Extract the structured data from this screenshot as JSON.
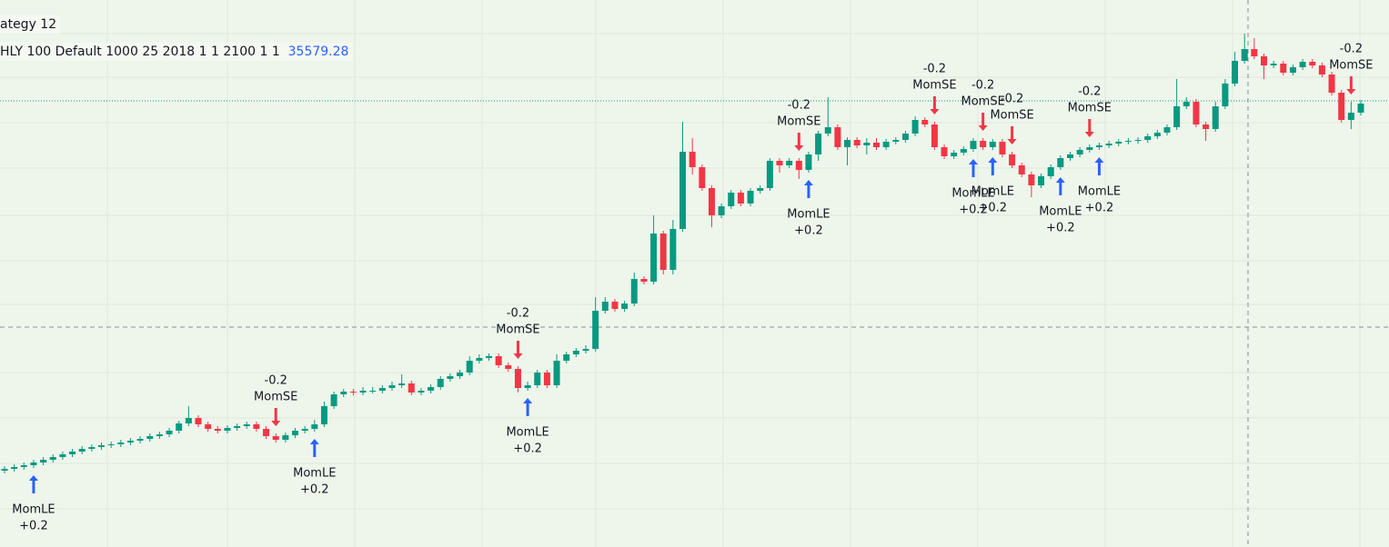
{
  "chart_data": {
    "type": "candlestick",
    "title": "ategy 12",
    "subtitle": "HLY 100 Default 1000 25 2018 1 1 2100 1 1",
    "last_value": 35579.28,
    "up_color": "#089981",
    "down_color": "#f23645",
    "long_color": "#2962ff",
    "short_color": "#f23645",
    "ylim": [
      0,
      602
    ],
    "open": [
      84,
      86,
      88,
      90,
      93,
      96,
      99,
      102,
      105,
      108,
      110,
      112,
      113,
      115,
      117,
      119,
      122,
      124,
      128,
      136,
      142,
      135,
      130,
      128,
      131,
      133,
      135,
      130,
      122,
      118,
      123,
      128,
      130,
      135,
      155,
      168,
      171,
      170,
      172,
      172,
      175,
      178,
      180,
      170,
      172,
      176,
      185,
      188,
      192,
      205,
      208,
      210,
      200,
      196,
      175,
      178,
      192,
      178,
      205,
      212,
      216,
      218,
      260,
      270,
      262,
      268,
      295,
      292,
      345,
      305,
      350,
      435,
      418,
      395,
      365,
      375,
      390,
      378,
      392,
      395,
      425,
      420,
      425,
      415,
      432,
      455,
      462,
      440,
      448,
      442,
      445,
      440,
      446,
      448,
      455,
      470,
      465,
      440,
      430,
      434,
      438,
      447,
      440,
      446,
      432,
      420,
      410,
      398,
      408,
      418,
      428,
      432,
      437,
      440,
      442,
      444,
      446,
      447,
      448,
      452,
      456,
      462,
      485,
      490,
      465,
      460,
      485,
      510,
      535,
      548,
      540,
      530,
      532,
      522,
      528,
      534,
      530,
      520,
      500,
      470,
      478
    ],
    "high": [
      89,
      91,
      93,
      96,
      99,
      102,
      105,
      108,
      111,
      113,
      115,
      116,
      118,
      120,
      122,
      125,
      127,
      131,
      139,
      155,
      145,
      138,
      133,
      134,
      136,
      138,
      138,
      133,
      125,
      126,
      131,
      133,
      140,
      160,
      171,
      174,
      174,
      176,
      176,
      178,
      182,
      190,
      183,
      175,
      179,
      188,
      191,
      195,
      210,
      212,
      213,
      213,
      203,
      199,
      182,
      195,
      195,
      212,
      215,
      219,
      222,
      275,
      275,
      273,
      271,
      302,
      298,
      365,
      348,
      360,
      468,
      450,
      421,
      398,
      378,
      393,
      393,
      395,
      398,
      428,
      428,
      428,
      428,
      435,
      458,
      495,
      465,
      451,
      451,
      450,
      450,
      449,
      451,
      458,
      474,
      473,
      468,
      443,
      437,
      441,
      450,
      450,
      449,
      449,
      435,
      423,
      413,
      411,
      421,
      431,
      435,
      440,
      443,
      445,
      447,
      449,
      450,
      451,
      455,
      459,
      465,
      515,
      495,
      493,
      468,
      490,
      515,
      545,
      565,
      560,
      543,
      535,
      535,
      531,
      537,
      537,
      533,
      523,
      503,
      490,
      492
    ],
    "low": [
      81,
      83,
      85,
      87,
      90,
      93,
      96,
      99,
      102,
      105,
      107,
      109,
      110,
      112,
      114,
      116,
      119,
      121,
      125,
      133,
      132,
      127,
      125,
      125,
      128,
      130,
      127,
      119,
      115,
      115,
      120,
      125,
      127,
      132,
      152,
      165,
      167,
      167,
      169,
      169,
      172,
      175,
      167,
      167,
      169,
      173,
      182,
      185,
      189,
      202,
      205,
      197,
      193,
      170,
      172,
      175,
      175,
      175,
      202,
      209,
      213,
      215,
      257,
      259,
      259,
      265,
      289,
      289,
      300,
      300,
      347,
      410,
      392,
      352,
      362,
      372,
      375,
      375,
      389,
      392,
      412,
      417,
      405,
      412,
      425,
      452,
      437,
      420,
      439,
      432,
      437,
      437,
      443,
      445,
      452,
      462,
      437,
      427,
      427,
      431,
      435,
      437,
      437,
      429,
      417,
      407,
      385,
      395,
      405,
      415,
      425,
      429,
      434,
      437,
      439,
      441,
      443,
      444,
      445,
      449,
      453,
      459,
      482,
      462,
      447,
      457,
      482,
      507,
      532,
      537,
      515,
      527,
      519,
      519,
      525,
      527,
      517,
      497,
      467,
      460,
      475
    ],
    "close": [
      86,
      88,
      90,
      93,
      96,
      99,
      102,
      105,
      108,
      110,
      112,
      113,
      115,
      117,
      119,
      122,
      124,
      128,
      136,
      142,
      135,
      130,
      128,
      131,
      133,
      135,
      130,
      122,
      118,
      123,
      128,
      130,
      135,
      155,
      168,
      171,
      170,
      172,
      172,
      175,
      178,
      180,
      170,
      172,
      176,
      185,
      188,
      192,
      205,
      208,
      210,
      200,
      196,
      175,
      178,
      192,
      178,
      205,
      212,
      216,
      218,
      260,
      270,
      262,
      268,
      295,
      292,
      345,
      305,
      350,
      435,
      418,
      395,
      365,
      375,
      390,
      378,
      392,
      395,
      425,
      420,
      425,
      415,
      432,
      455,
      462,
      440,
      448,
      442,
      445,
      440,
      446,
      448,
      455,
      470,
      465,
      440,
      430,
      434,
      438,
      447,
      440,
      446,
      432,
      420,
      410,
      398,
      408,
      418,
      428,
      432,
      437,
      440,
      442,
      444,
      446,
      447,
      448,
      452,
      456,
      462,
      485,
      490,
      465,
      460,
      485,
      510,
      535,
      548,
      540,
      530,
      532,
      522,
      528,
      534,
      530,
      520,
      500,
      470,
      478,
      488
    ],
    "signals": [
      {
        "x": 3,
        "side": "long",
        "label": "MomLE",
        "qty": "+0.2"
      },
      {
        "x": 28,
        "side": "short",
        "label": "MomSE",
        "qty": "-0.2"
      },
      {
        "x": 32,
        "side": "long",
        "label": "MomLE",
        "qty": "+0.2"
      },
      {
        "x": 53,
        "side": "short",
        "label": "MomSE",
        "qty": "-0.2"
      },
      {
        "x": 54,
        "side": "long",
        "label": "MomLE",
        "qty": "+0.2"
      },
      {
        "x": 82,
        "side": "short",
        "label": "MomSE",
        "qty": "-0.2"
      },
      {
        "x": 83,
        "side": "long",
        "label": "MomLE",
        "qty": "+0.2"
      },
      {
        "x": 96,
        "side": "short",
        "label": "MomSE",
        "qty": "-0.2"
      },
      {
        "x": 100,
        "side": "long",
        "label": "MomLE",
        "qty": "+0.2"
      },
      {
        "x": 101,
        "side": "short",
        "label": "MomSE",
        "qty": "-0.2"
      },
      {
        "x": 102,
        "side": "long",
        "label": "MomLE",
        "qty": "+0.2"
      },
      {
        "x": 104,
        "side": "short",
        "label": "MomSE",
        "qty": "-0.2"
      },
      {
        "x": 109,
        "side": "long",
        "label": "MomLE",
        "qty": "+0.2"
      },
      {
        "x": 112,
        "side": "short",
        "label": "MomSE",
        "qty": "-0.2"
      },
      {
        "x": 113,
        "side": "long",
        "label": "MomLE",
        "qty": "+0.2"
      },
      {
        "x": 139,
        "side": "short",
        "label": "MomSE",
        "qty": "-0.2"
      }
    ]
  }
}
